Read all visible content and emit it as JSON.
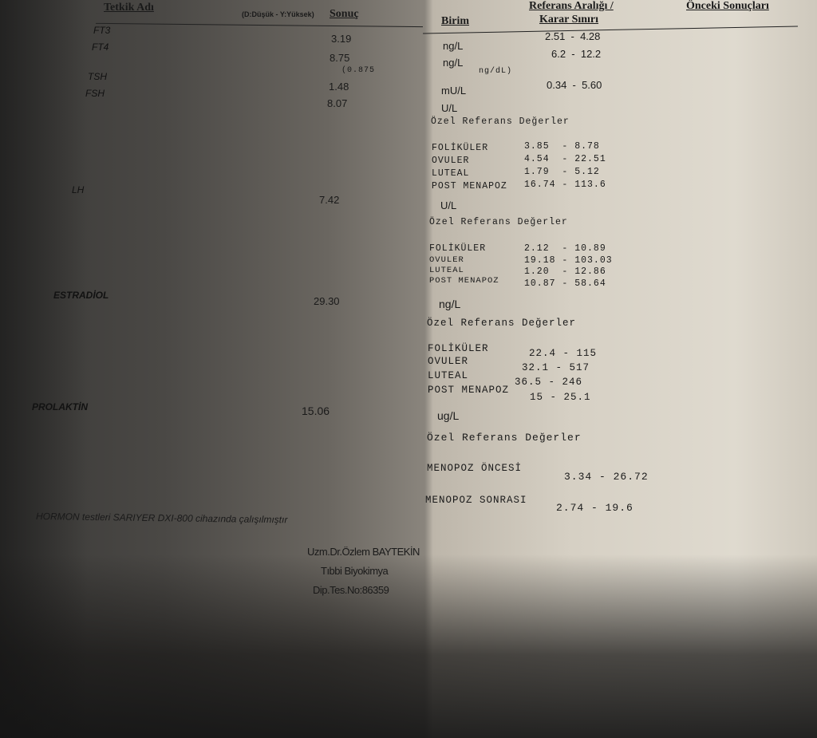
{
  "header": {
    "test_name": "Tetkik Adı",
    "flag_legend": "(D:Düşük - Y:Yüksek)",
    "result": "Sonuç",
    "unit": "Birim",
    "reference_line1": "Referans Aralığı /",
    "reference_line2": "Karar Sınırı",
    "previous": "Önceki Sonuçları"
  },
  "tests": [
    {
      "name": "FT3",
      "result": "3.19",
      "unit": "ng/L",
      "range": "2.51  -  4.28"
    },
    {
      "name": "FT4",
      "result": "8.75",
      "unit": "ng/L",
      "range": "6.2  -  12.2",
      "note_left": "(0.875",
      "note_right": "ng/dL)"
    },
    {
      "name": "TSH",
      "result": "1.48",
      "unit": "mU/L",
      "range": "0.34  -  5.60"
    },
    {
      "name": "FSH",
      "result": "8.07",
      "unit": "U/L"
    },
    {
      "name": "LH",
      "result": "7.42",
      "unit": "U/L"
    },
    {
      "name": "ESTRADİOL",
      "result": "29.30",
      "unit": "ng/L"
    },
    {
      "name": "PROLAKTİN",
      "result": "15.06",
      "unit": "ug/L"
    }
  ],
  "special_title": "Özel Referans Değerler",
  "fsh_refs": [
    {
      "phase": "FOLİKÜLER",
      "range": "3.85  - 8.78"
    },
    {
      "phase": "OVULER",
      "range": "4.54  - 22.51"
    },
    {
      "phase": "LUTEAL",
      "range": "1.79  - 5.12"
    },
    {
      "phase": "POST MENAPOZ",
      "range": "16.74 - 113.6"
    }
  ],
  "lh_refs": [
    {
      "phase": "FOLİKÜLER",
      "range": "2.12  - 10.89"
    },
    {
      "phase": "OVULER",
      "range": "19.18 - 103.03"
    },
    {
      "phase": "LUTEAL",
      "range": "1.20  - 12.86"
    },
    {
      "phase": "POST MENAPOZ",
      "range": "10.87 - 58.64"
    }
  ],
  "e2_refs": [
    {
      "phase": "FOLİKÜLER",
      "range": "22.4 - 115"
    },
    {
      "phase": "OVULER",
      "range": "32.1 - 517"
    },
    {
      "phase": "LUTEAL",
      "range": "36.5 - 246"
    },
    {
      "phase": "POST MENAPOZ",
      "range": "15 - 25.1"
    }
  ],
  "prl_refs": [
    {
      "phase": "MENOPOZ ÖNCESİ",
      "range": "3.34 - 26.72"
    },
    {
      "phase": "MENOPOZ SONRASI",
      "range": "2.74 - 19.6"
    }
  ],
  "footer": {
    "device_note": "HORMON testleri SARIYER DXI-800 cihazında çalışılmıştır",
    "signer": "Uzm.Dr.Özlem BAYTEKİN",
    "department": "Tıbbi Biyokimya",
    "diploma": "Dip.Tes.No:86359"
  }
}
